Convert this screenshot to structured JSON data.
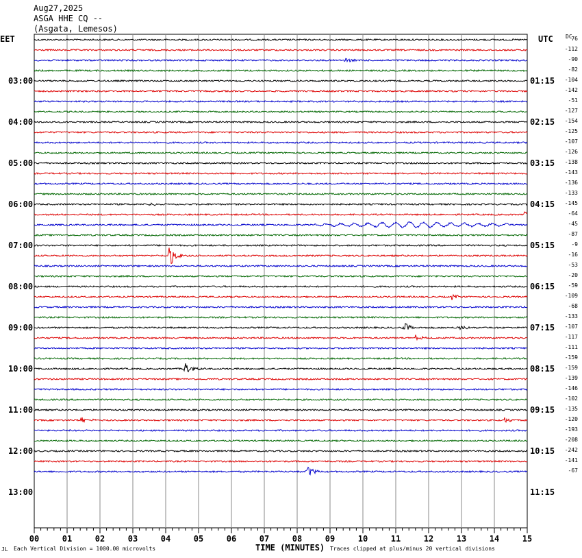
{
  "header": {
    "date": "Aug27,2025",
    "station": "ASGA HHE CQ --",
    "location": "(Asgata, Lemesos)"
  },
  "tz_left": "EET",
  "tz_right": "UTC",
  "dc_label": "DC",
  "chart_data": {
    "type": "line",
    "xlabel": "TIME (MINUTES)",
    "xlim": [
      0,
      15
    ],
    "x_ticks": [
      "00",
      "01",
      "02",
      "03",
      "04",
      "05",
      "06",
      "07",
      "08",
      "09",
      "10",
      "11",
      "12",
      "13",
      "14",
      "15"
    ],
    "hour_labels_left": [
      "03:00",
      "04:00",
      "05:00",
      "06:00",
      "07:00",
      "08:00",
      "09:00",
      "10:00",
      "11:00",
      "12:00",
      "13:00"
    ],
    "hour_labels_right": [
      "01:15",
      "02:15",
      "03:15",
      "04:15",
      "05:15",
      "06:15",
      "07:15",
      "08:15",
      "09:15",
      "10:15",
      "11:15"
    ],
    "trace_colors": [
      "#000000",
      "#dd0000",
      "#0000cc",
      "#006600"
    ],
    "traces_count": 43,
    "dc_offsets": [
      76,
      -112,
      -90,
      -82,
      -104,
      -142,
      -51,
      -127,
      -154,
      -125,
      -107,
      -126,
      -138,
      -143,
      -136,
      -133,
      -145,
      -64,
      -45,
      -87,
      -9,
      -16,
      -53,
      -20,
      -59,
      -109,
      -68,
      -133,
      -107,
      -117,
      -111,
      -159,
      -159,
      -139,
      -146,
      -102,
      -135,
      -120,
      -193,
      -208,
      -242,
      -141,
      -67
    ],
    "events": [
      {
        "trace": 2,
        "minute": 9.45,
        "amp": 6
      },
      {
        "trace": 16,
        "minute": 3.5,
        "amp": 3
      },
      {
        "trace": 17,
        "minute": 14.9,
        "amp": 4
      },
      {
        "trace": 18,
        "minute": 11.5,
        "amp": 4,
        "wave": true
      },
      {
        "trace": 21,
        "minute": 4.1,
        "amp": 18
      },
      {
        "trace": 25,
        "minute": 12.7,
        "amp": 5
      },
      {
        "trace": 28,
        "minute": 11.25,
        "amp": 8
      },
      {
        "trace": 28,
        "minute": 12.9,
        "amp": 5
      },
      {
        "trace": 29,
        "minute": 11.6,
        "amp": 4
      },
      {
        "trace": 32,
        "minute": 4.6,
        "amp": 11
      },
      {
        "trace": 37,
        "minute": 1.45,
        "amp": 6
      },
      {
        "trace": 37,
        "minute": 14.3,
        "amp": 5
      },
      {
        "trace": 42,
        "minute": 8.3,
        "amp": 10
      }
    ]
  },
  "footer": {
    "scale": "Each Vertical Division = 1000.00 microvolts",
    "clip": "Traces clipped at plus/minus 20 vertical divisions",
    "corner": "JL"
  }
}
